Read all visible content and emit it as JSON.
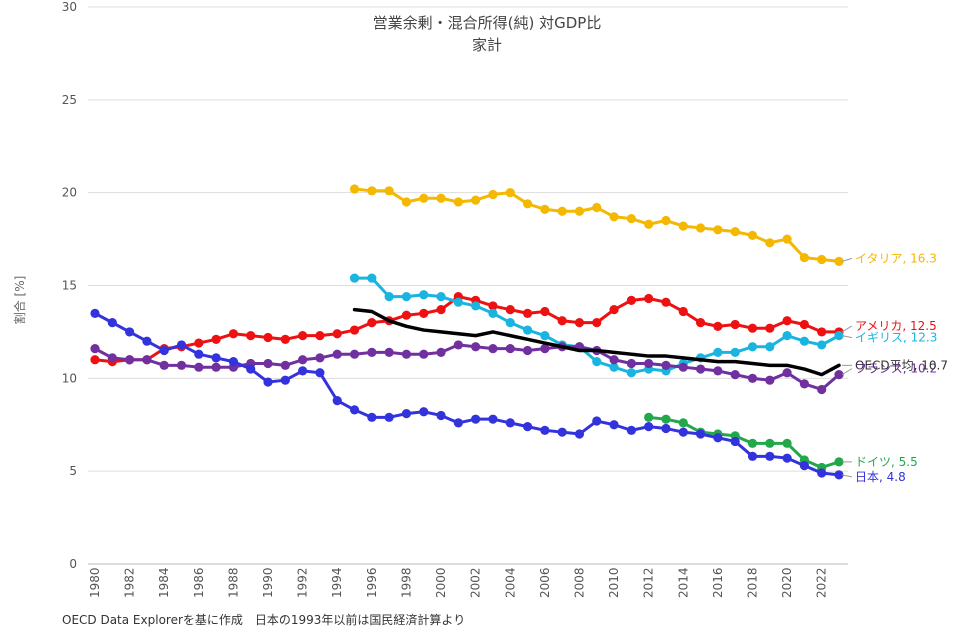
{
  "chart_data": {
    "type": "line",
    "title": "営業余剰・混合所得(純) 対GDP比",
    "subtitle": "家計",
    "ylabel": "割合 [%]",
    "xlabel": "",
    "ylim": [
      0,
      30
    ],
    "xlim": [
      1980,
      2023
    ],
    "y_ticks": [
      "0",
      "5",
      "10",
      "15",
      "20",
      "25",
      "30"
    ],
    "x_ticks": [
      "1980",
      "1982",
      "1984",
      "1986",
      "1988",
      "1990",
      "1992",
      "1994",
      "1996",
      "1998",
      "2000",
      "2002",
      "2004",
      "2006",
      "2008",
      "2010",
      "2012",
      "2014",
      "2016",
      "2018",
      "2020",
      "2022"
    ],
    "grid": true,
    "source": "OECD Data Explorerを基に作成　日本の1993年以前は国民経済計算より",
    "series": [
      {
        "name": "イタリア",
        "label": "イタリア, 16.3",
        "color": "#F5B800",
        "markers": true,
        "start": 1995,
        "values": [
          20.2,
          20.1,
          20.1,
          19.5,
          19.7,
          19.7,
          19.5,
          19.6,
          19.9,
          20.0,
          19.4,
          19.1,
          19.0,
          19.0,
          19.2,
          18.7,
          18.6,
          18.3,
          18.5,
          18.2,
          18.1,
          18.0,
          17.9,
          17.7,
          17.3,
          17.5,
          16.5,
          16.4,
          16.3
        ]
      },
      {
        "name": "アメリカ",
        "label": "アメリカ, 12.5",
        "color": "#EE1111",
        "markers": true,
        "start": 1980,
        "values": [
          11.0,
          10.9,
          11.0,
          11.0,
          11.6,
          11.7,
          11.9,
          12.1,
          12.4,
          12.3,
          12.2,
          12.1,
          12.3,
          12.3,
          12.4,
          12.6,
          13.0,
          13.1,
          13.4,
          13.5,
          13.7,
          14.4,
          14.2,
          13.9,
          13.7,
          13.5,
          13.6,
          13.1,
          13.0,
          13.0,
          13.7,
          14.2,
          14.3,
          14.1,
          13.6,
          13.0,
          12.8,
          12.9,
          12.7,
          12.7,
          13.1,
          12.9,
          12.5,
          12.5
        ]
      },
      {
        "name": "イギリス",
        "label": "イギリス, 12.3",
        "color": "#19B5E0",
        "markers": true,
        "start": 1995,
        "values": [
          15.4,
          15.4,
          14.4,
          14.4,
          14.5,
          14.4,
          14.1,
          13.9,
          13.5,
          13.0,
          12.6,
          12.3,
          11.8,
          11.7,
          10.9,
          10.6,
          10.3,
          10.5,
          10.4,
          10.8,
          11.1,
          11.4,
          11.4,
          11.7,
          11.7,
          12.3,
          12.0,
          11.8,
          12.3
        ]
      },
      {
        "name": "フランス",
        "label": "フランス, 10.2",
        "color": "#7030A0",
        "markers": true,
        "start": 1980,
        "values": [
          11.6,
          11.1,
          11.0,
          11.0,
          10.7,
          10.7,
          10.6,
          10.6,
          10.6,
          10.8,
          10.8,
          10.7,
          11.0,
          11.1,
          11.3,
          11.3,
          11.4,
          11.4,
          11.3,
          11.3,
          11.4,
          11.8,
          11.7,
          11.6,
          11.6,
          11.5,
          11.6,
          11.7,
          11.7,
          11.5,
          11.0,
          10.8,
          10.8,
          10.7,
          10.6,
          10.5,
          10.4,
          10.2,
          10.0,
          9.9,
          10.3,
          9.7,
          9.4,
          10.2
        ]
      },
      {
        "name": "OECD平均",
        "label": "OECD平均, 10.7",
        "color": "#000000",
        "markers": false,
        "start": 1995,
        "values": [
          13.7,
          13.6,
          13.1,
          12.8,
          12.6,
          12.5,
          12.4,
          12.3,
          12.5,
          12.3,
          12.1,
          11.9,
          11.7,
          11.5,
          11.5,
          11.4,
          11.3,
          11.2,
          11.2,
          11.1,
          11.0,
          10.9,
          10.9,
          10.8,
          10.7,
          10.7,
          10.5,
          10.2,
          10.7
        ]
      },
      {
        "name": "ドイツ",
        "label": "ドイツ, 5.5",
        "color": "#22A84A",
        "markers": true,
        "start": 2012,
        "values": [
          7.9,
          7.8,
          7.6,
          7.1,
          7.0,
          6.9,
          6.5,
          6.5,
          6.5,
          5.6,
          5.2,
          5.5
        ]
      },
      {
        "name": "日本",
        "label": "日本, 4.8",
        "color": "#3333DD",
        "markers": true,
        "start": 1980,
        "values": [
          13.5,
          13.0,
          12.5,
          12.0,
          11.5,
          11.8,
          11.3,
          11.1,
          10.9,
          10.5,
          9.8,
          9.9,
          10.4,
          10.3,
          8.8,
          8.3,
          7.9,
          7.9,
          8.1,
          8.2,
          8.0,
          7.6,
          7.8,
          7.8,
          7.6,
          7.4,
          7.2,
          7.1,
          7.0,
          7.7,
          7.5,
          7.2,
          7.4,
          7.3,
          7.1,
          7.0,
          6.8,
          6.6,
          5.8,
          5.8,
          5.7,
          5.3,
          4.9,
          4.8
        ]
      }
    ]
  }
}
